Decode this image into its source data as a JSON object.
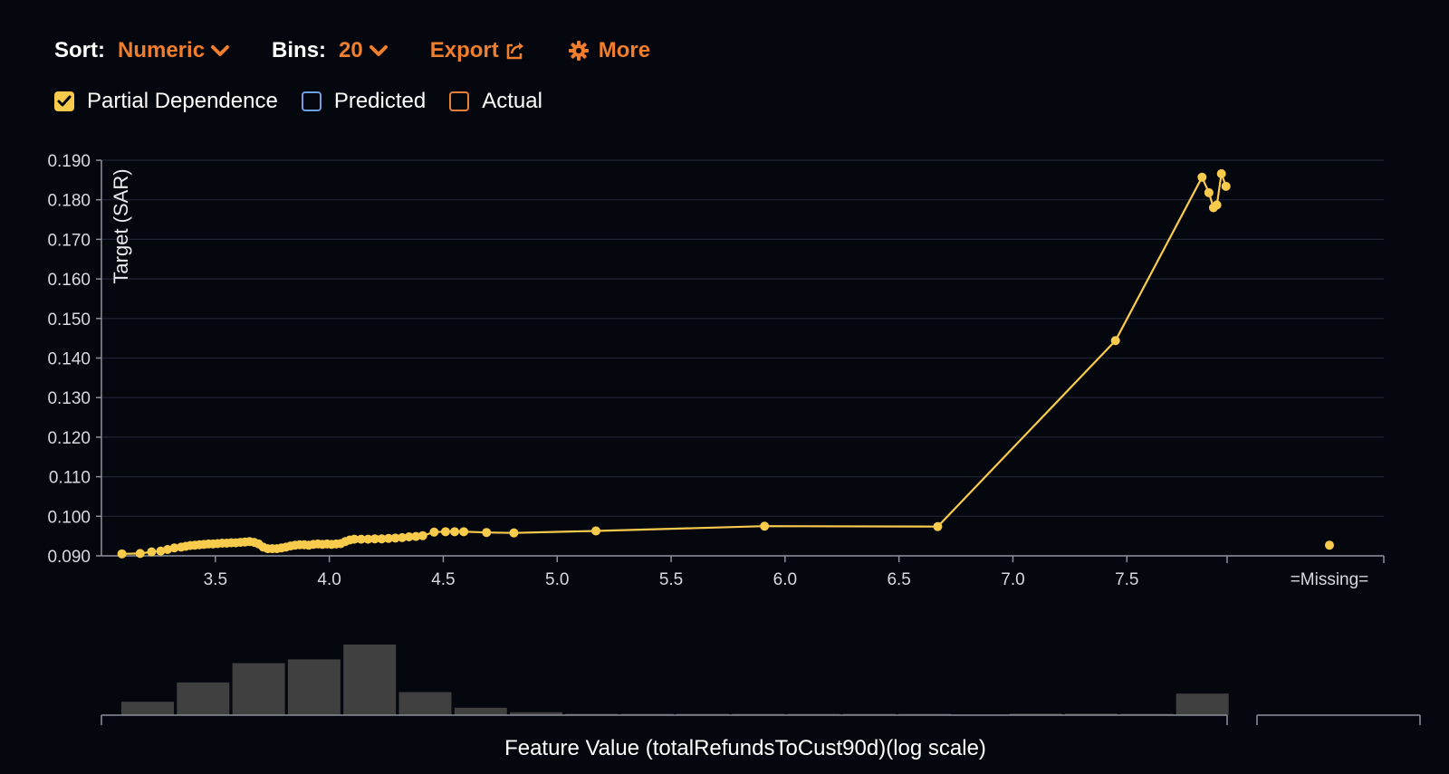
{
  "toolbar": {
    "sort_label": "Sort:",
    "sort_value": "Numeric",
    "bins_label": "Bins:",
    "bins_value": "20",
    "export_label": "Export",
    "more_label": "More",
    "accent_color": "#f07e2c"
  },
  "toggles": {
    "partial_dependence": {
      "label": "Partial Dependence",
      "checked": true,
      "color": "#f9cb4d"
    },
    "predicted": {
      "label": "Predicted",
      "checked": false,
      "color": "#6f9fe0"
    },
    "actual": {
      "label": "Actual",
      "checked": false,
      "color": "#e7803a"
    }
  },
  "chart_data": {
    "type": "line",
    "ylabel": "Target (SAR)",
    "xlabel": "Feature Value (totalRefundsToCust90d)(log scale)",
    "ylim": [
      0.09,
      0.19
    ],
    "xlim": [
      3.05,
      8.0
    ],
    "yticks": [
      "0.090",
      "0.100",
      "0.110",
      "0.120",
      "0.130",
      "0.140",
      "0.150",
      "0.160",
      "0.170",
      "0.180",
      "0.190"
    ],
    "xticks": [
      "3.5",
      "4.0",
      "4.5",
      "5.0",
      "5.5",
      "6.0",
      "6.5",
      "7.0",
      "7.5"
    ],
    "missing_label": "=Missing=",
    "grid": true,
    "series": [
      {
        "color": "#f9cb4d",
        "x": [
          3.09,
          3.17,
          3.22,
          3.26,
          3.29,
          3.32,
          3.35,
          3.37,
          3.39,
          3.41,
          3.43,
          3.45,
          3.47,
          3.49,
          3.51,
          3.53,
          3.55,
          3.57,
          3.59,
          3.61,
          3.63,
          3.65,
          3.67,
          3.69,
          3.71,
          3.73,
          3.75,
          3.77,
          3.79,
          3.81,
          3.83,
          3.85,
          3.87,
          3.89,
          3.91,
          3.93,
          3.95,
          3.97,
          3.99,
          4.01,
          4.03,
          4.05,
          4.07,
          4.09,
          4.11,
          4.14,
          4.17,
          4.2,
          4.23,
          4.26,
          4.29,
          4.32,
          4.35,
          4.38,
          4.41,
          4.46,
          4.51,
          4.55,
          4.59,
          4.69,
          4.81,
          5.17,
          5.91,
          6.67,
          7.45,
          7.83,
          7.86,
          7.88,
          7.895,
          7.915,
          7.935
        ],
        "y": [
          0.0905,
          0.0906,
          0.091,
          0.0912,
          0.0916,
          0.092,
          0.0922,
          0.0924,
          0.0926,
          0.0927,
          0.0928,
          0.0929,
          0.093,
          0.093,
          0.0931,
          0.0932,
          0.0932,
          0.0933,
          0.0933,
          0.0934,
          0.0935,
          0.0936,
          0.0934,
          0.093,
          0.0922,
          0.0918,
          0.0918,
          0.0918,
          0.092,
          0.0922,
          0.0925,
          0.0927,
          0.0928,
          0.0928,
          0.0927,
          0.0929,
          0.093,
          0.0929,
          0.093,
          0.0929,
          0.093,
          0.0931,
          0.0936,
          0.094,
          0.0942,
          0.0942,
          0.0942,
          0.0943,
          0.0943,
          0.0944,
          0.0945,
          0.0946,
          0.0948,
          0.0949,
          0.0951,
          0.096,
          0.0961,
          0.0961,
          0.0961,
          0.0959,
          0.0958,
          0.0963,
          0.0975,
          0.0974,
          0.1444,
          0.1857,
          0.1818,
          0.178,
          0.1787,
          0.1866,
          0.1834
        ]
      }
    ],
    "missing_value": 0.0927,
    "histogram": {
      "values": [
        0.18,
        0.44,
        0.7,
        0.75,
        0.95,
        0.31,
        0.1,
        0.04,
        0.01,
        0.01,
        0.01,
        0.01,
        0.01,
        0.01,
        0.01,
        0.0,
        0.02,
        0.02,
        0.01,
        0.29
      ],
      "missing_value": 0,
      "color": "#404040"
    }
  }
}
